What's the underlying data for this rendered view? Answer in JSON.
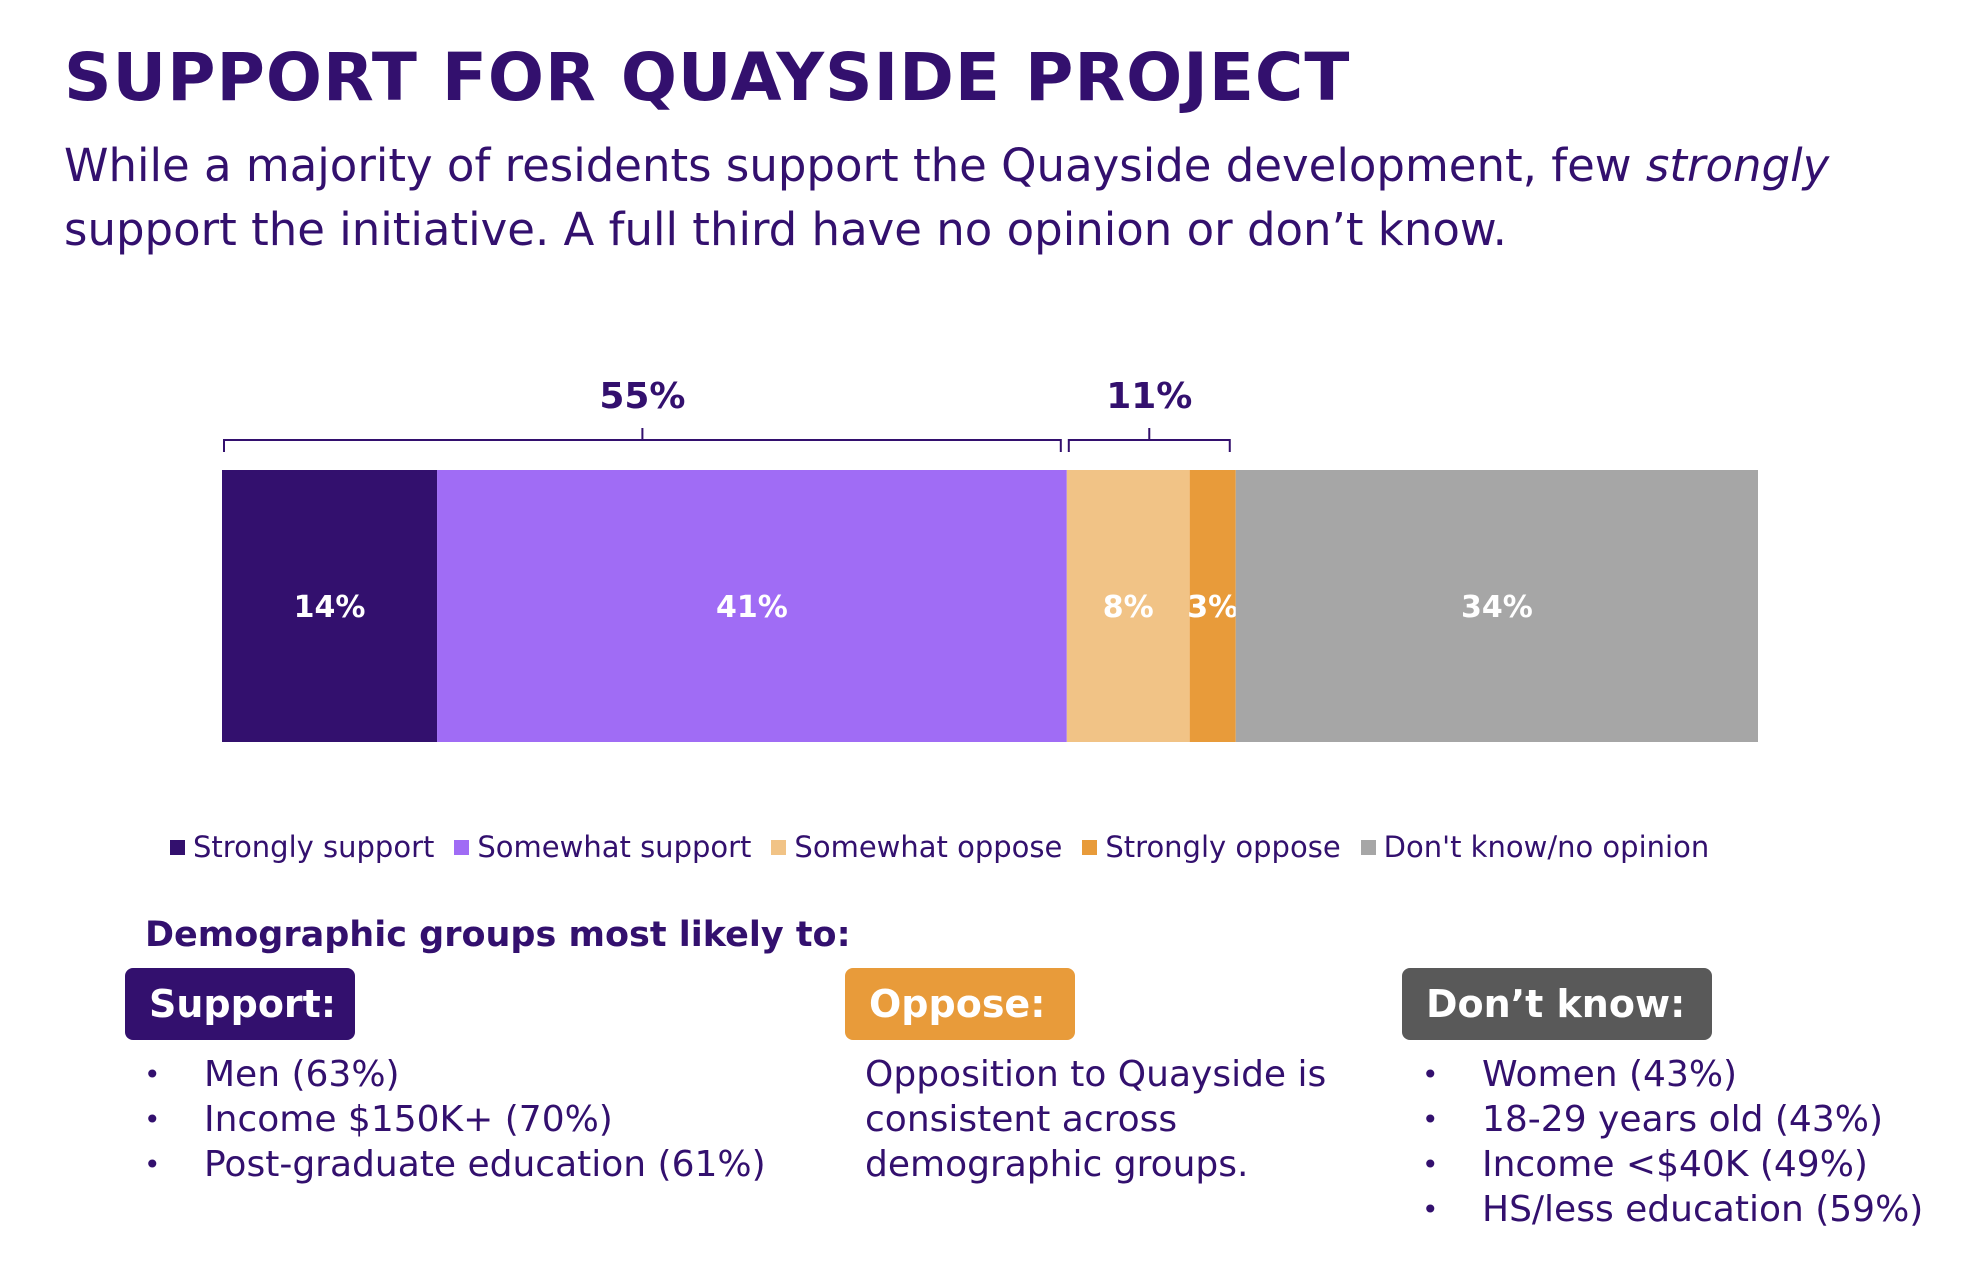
{
  "header": {
    "title": "SUPPORT FOR QUAYSIDE PROJECT",
    "subtitle_part1": "While a majority of residents support the Quayside development, few ",
    "subtitle_emphasis": "strongly",
    "subtitle_part2": " support the initiative. A full third have no opinion or don’t know."
  },
  "chart_data": {
    "type": "bar",
    "stacked": true,
    "orientation": "horizontal",
    "categories": [
      ""
    ],
    "series": [
      {
        "name": "Strongly support",
        "values": [
          14
        ],
        "label": "14%",
        "color": "#33106e"
      },
      {
        "name": "Somewhat support",
        "values": [
          41
        ],
        "label": "41%",
        "color": "#a06cf5"
      },
      {
        "name": "Somewhat oppose",
        "values": [
          8
        ],
        "label": "8%",
        "color": "#f1c386"
      },
      {
        "name": "Strongly oppose",
        "values": [
          3
        ],
        "label": "3%",
        "color": "#e89b3a"
      },
      {
        "name": "Don't know/no opinion",
        "values": [
          34
        ],
        "label": "34%",
        "color": "#a6a6a6"
      }
    ],
    "xlim": [
      0,
      100
    ],
    "grid": false,
    "legend_position": "bottom",
    "brackets": [
      {
        "label": "55%",
        "from_series": 0,
        "to_series": 1
      },
      {
        "label": "11%",
        "from_series": 2,
        "to_series": 3
      }
    ]
  },
  "demographics": {
    "heading": "Demographic groups most likely to:",
    "support": {
      "label": "Support:",
      "color": "#33106e",
      "items": [
        "Men (63%)",
        "Income $150K+ (70%)",
        "Post-graduate education (61%)"
      ]
    },
    "oppose": {
      "label": "Oppose:",
      "color": "#e89b3a",
      "text": "Opposition to Quayside is consistent across demographic groups."
    },
    "dont_know": {
      "label": "Don’t know:",
      "color": "#595959",
      "items": [
        "Women (43%)",
        "18-29 years old (43%)",
        "Income <$40K (49%)",
        "HS/less education (59%)"
      ]
    }
  }
}
